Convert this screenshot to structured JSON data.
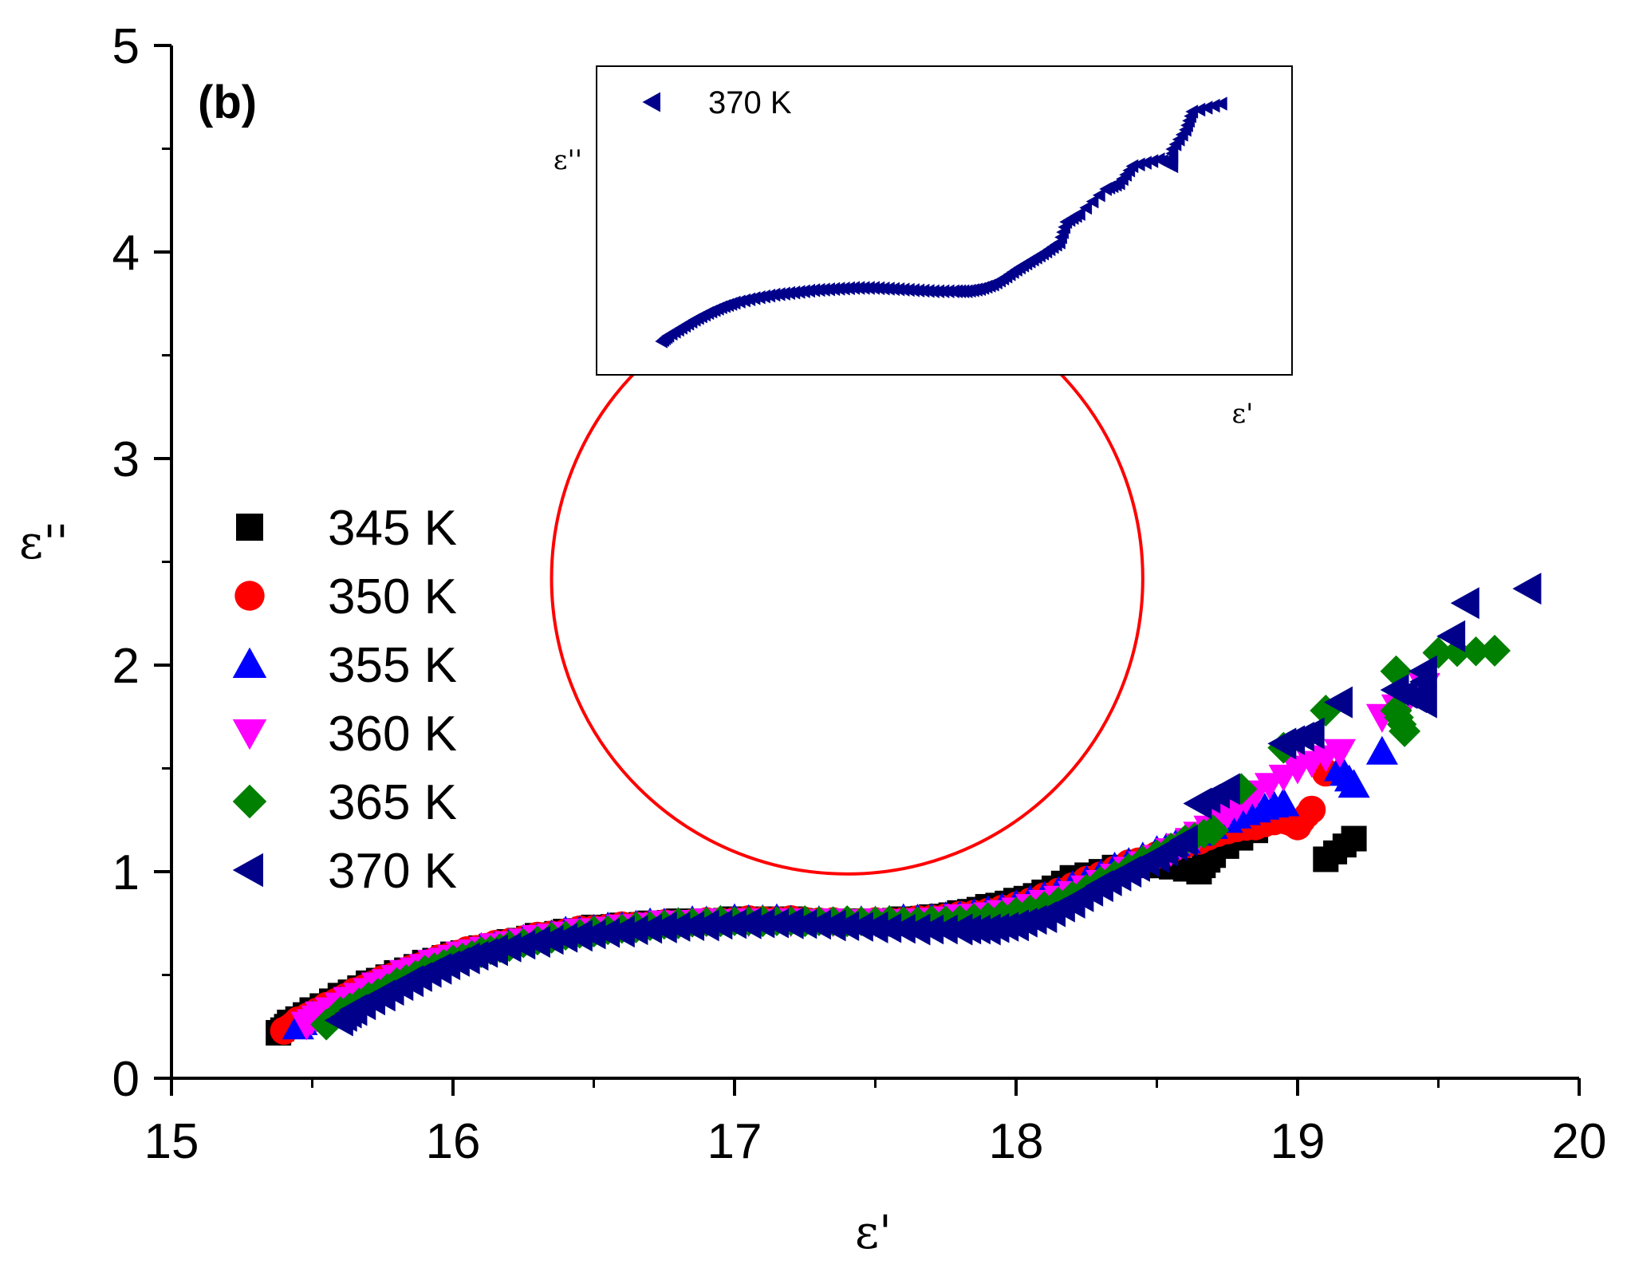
{
  "chart_data": {
    "type": "scatter",
    "panel_label": "(b)",
    "xlabel": "ε'",
    "ylabel": "ε''",
    "xlim": [
      15,
      20
    ],
    "ylim": [
      0,
      5
    ],
    "xticks": [
      15,
      16,
      17,
      18,
      19,
      20
    ],
    "yticks": [
      0,
      1,
      2,
      3,
      4,
      5
    ],
    "legend_position": "left-middle",
    "series": [
      {
        "name": "345 K",
        "color": "#000000",
        "marker": "square",
        "points": [
          [
            15.38,
            0.22
          ],
          [
            15.42,
            0.27
          ],
          [
            15.5,
            0.33
          ],
          [
            15.6,
            0.4
          ],
          [
            15.7,
            0.46
          ],
          [
            15.8,
            0.51
          ],
          [
            15.9,
            0.56
          ],
          [
            16.0,
            0.6
          ],
          [
            16.1,
            0.63
          ],
          [
            16.2,
            0.66
          ],
          [
            16.3,
            0.69
          ],
          [
            16.4,
            0.71
          ],
          [
            16.5,
            0.73
          ],
          [
            16.6,
            0.74
          ],
          [
            16.7,
            0.75
          ],
          [
            16.8,
            0.76
          ],
          [
            16.9,
            0.76
          ],
          [
            17.0,
            0.77
          ],
          [
            17.1,
            0.77
          ],
          [
            17.2,
            0.77
          ],
          [
            17.3,
            0.76
          ],
          [
            17.4,
            0.76
          ],
          [
            17.5,
            0.76
          ],
          [
            17.6,
            0.77
          ],
          [
            17.7,
            0.78
          ],
          [
            17.8,
            0.8
          ],
          [
            17.9,
            0.83
          ],
          [
            18.0,
            0.86
          ],
          [
            18.1,
            0.9
          ],
          [
            18.2,
            0.97
          ],
          [
            18.35,
            1.02
          ],
          [
            18.5,
            1.03
          ],
          [
            18.65,
            1.0
          ],
          [
            18.7,
            1.08
          ],
          [
            18.85,
            1.2
          ],
          [
            19.1,
            1.06
          ],
          [
            19.2,
            1.16
          ]
        ]
      },
      {
        "name": "350 K",
        "color": "#ff0000",
        "marker": "circle",
        "points": [
          [
            15.4,
            0.23
          ],
          [
            15.45,
            0.28
          ],
          [
            15.55,
            0.35
          ],
          [
            15.65,
            0.42
          ],
          [
            15.75,
            0.48
          ],
          [
            15.85,
            0.53
          ],
          [
            15.95,
            0.58
          ],
          [
            16.05,
            0.62
          ],
          [
            16.15,
            0.65
          ],
          [
            16.3,
            0.69
          ],
          [
            16.45,
            0.72
          ],
          [
            16.6,
            0.74
          ],
          [
            16.75,
            0.75
          ],
          [
            16.9,
            0.76
          ],
          [
            17.05,
            0.77
          ],
          [
            17.2,
            0.77
          ],
          [
            17.35,
            0.76
          ],
          [
            17.5,
            0.76
          ],
          [
            17.65,
            0.77
          ],
          [
            17.8,
            0.79
          ],
          [
            17.95,
            0.82
          ],
          [
            18.1,
            0.88
          ],
          [
            18.25,
            0.96
          ],
          [
            18.4,
            1.04
          ],
          [
            18.5,
            1.08
          ],
          [
            18.65,
            1.15
          ],
          [
            18.75,
            1.2
          ],
          [
            18.85,
            1.22
          ],
          [
            18.95,
            1.25
          ],
          [
            19.0,
            1.22
          ],
          [
            19.05,
            1.3
          ],
          [
            19.1,
            1.48
          ]
        ]
      },
      {
        "name": "355 K",
        "color": "#0000ff",
        "marker": "triangle-up",
        "points": [
          [
            15.45,
            0.25
          ],
          [
            15.5,
            0.3
          ],
          [
            15.6,
            0.37
          ],
          [
            15.7,
            0.44
          ],
          [
            15.8,
            0.5
          ],
          [
            15.9,
            0.55
          ],
          [
            16.0,
            0.59
          ],
          [
            16.1,
            0.63
          ],
          [
            16.25,
            0.67
          ],
          [
            16.4,
            0.71
          ],
          [
            16.55,
            0.73
          ],
          [
            16.7,
            0.75
          ],
          [
            16.85,
            0.76
          ],
          [
            17.0,
            0.77
          ],
          [
            17.15,
            0.77
          ],
          [
            17.3,
            0.76
          ],
          [
            17.45,
            0.76
          ],
          [
            17.6,
            0.77
          ],
          [
            17.75,
            0.78
          ],
          [
            17.9,
            0.81
          ],
          [
            18.05,
            0.86
          ],
          [
            18.2,
            0.93
          ],
          [
            18.35,
            1.02
          ],
          [
            18.5,
            1.1
          ],
          [
            18.6,
            1.15
          ],
          [
            18.75,
            1.25
          ],
          [
            18.85,
            1.3
          ],
          [
            18.95,
            1.33
          ],
          [
            19.15,
            1.5
          ],
          [
            19.2,
            1.42
          ],
          [
            19.3,
            1.58
          ]
        ]
      },
      {
        "name": "360 K",
        "color": "#ff00ff",
        "marker": "triangle-down",
        "points": [
          [
            15.48,
            0.26
          ],
          [
            15.53,
            0.31
          ],
          [
            15.63,
            0.38
          ],
          [
            15.73,
            0.45
          ],
          [
            15.83,
            0.51
          ],
          [
            15.93,
            0.56
          ],
          [
            16.03,
            0.6
          ],
          [
            16.15,
            0.64
          ],
          [
            16.3,
            0.68
          ],
          [
            16.45,
            0.71
          ],
          [
            16.6,
            0.73
          ],
          [
            16.75,
            0.75
          ],
          [
            16.9,
            0.76
          ],
          [
            17.05,
            0.76
          ],
          [
            17.2,
            0.76
          ],
          [
            17.35,
            0.76
          ],
          [
            17.5,
            0.76
          ],
          [
            17.65,
            0.76
          ],
          [
            17.8,
            0.78
          ],
          [
            17.95,
            0.8
          ],
          [
            18.1,
            0.85
          ],
          [
            18.25,
            0.92
          ],
          [
            18.4,
            1.01
          ],
          [
            18.55,
            1.1
          ],
          [
            18.65,
            1.18
          ],
          [
            18.75,
            1.28
          ],
          [
            18.85,
            1.38
          ],
          [
            19.0,
            1.5
          ],
          [
            19.15,
            1.58
          ],
          [
            19.3,
            1.75
          ],
          [
            19.45,
            1.9
          ]
        ]
      },
      {
        "name": "365 K",
        "color": "#008000",
        "marker": "diamond",
        "points": [
          [
            15.55,
            0.26
          ],
          [
            15.6,
            0.32
          ],
          [
            15.7,
            0.39
          ],
          [
            15.8,
            0.46
          ],
          [
            15.9,
            0.52
          ],
          [
            16.0,
            0.57
          ],
          [
            16.1,
            0.61
          ],
          [
            16.2,
            0.64
          ],
          [
            16.35,
            0.68
          ],
          [
            16.5,
            0.71
          ],
          [
            16.65,
            0.73
          ],
          [
            16.8,
            0.75
          ],
          [
            16.95,
            0.76
          ],
          [
            17.1,
            0.76
          ],
          [
            17.25,
            0.76
          ],
          [
            17.4,
            0.76
          ],
          [
            17.55,
            0.76
          ],
          [
            17.7,
            0.76
          ],
          [
            17.85,
            0.77
          ],
          [
            18.0,
            0.8
          ],
          [
            18.15,
            0.85
          ],
          [
            18.3,
            0.95
          ],
          [
            18.45,
            1.05
          ],
          [
            18.6,
            1.15
          ],
          [
            18.7,
            1.2
          ],
          [
            18.8,
            1.4
          ],
          [
            18.95,
            1.6
          ],
          [
            19.1,
            1.78
          ],
          [
            19.35,
            1.97
          ],
          [
            19.35,
            1.78
          ],
          [
            19.38,
            1.68
          ],
          [
            19.5,
            2.06
          ],
          [
            19.7,
            2.07
          ]
        ]
      },
      {
        "name": "370 K",
        "color": "#00008b",
        "marker": "triangle-left",
        "points": [
          [
            15.6,
            0.28
          ],
          [
            15.65,
            0.33
          ],
          [
            15.75,
            0.4
          ],
          [
            15.85,
            0.47
          ],
          [
            15.95,
            0.53
          ],
          [
            16.05,
            0.58
          ],
          [
            16.15,
            0.62
          ],
          [
            16.3,
            0.66
          ],
          [
            16.45,
            0.69
          ],
          [
            16.6,
            0.71
          ],
          [
            16.75,
            0.73
          ],
          [
            16.9,
            0.74
          ],
          [
            17.05,
            0.75
          ],
          [
            17.2,
            0.75
          ],
          [
            17.35,
            0.74
          ],
          [
            17.5,
            0.73
          ],
          [
            17.65,
            0.72
          ],
          [
            17.8,
            0.72
          ],
          [
            17.9,
            0.72
          ],
          [
            18.0,
            0.74
          ],
          [
            18.1,
            0.78
          ],
          [
            18.2,
            0.85
          ],
          [
            18.3,
            0.93
          ],
          [
            18.4,
            1.0
          ],
          [
            18.5,
            1.07
          ],
          [
            18.6,
            1.15
          ],
          [
            18.65,
            1.33
          ],
          [
            18.75,
            1.4
          ],
          [
            18.95,
            1.62
          ],
          [
            19.05,
            1.67
          ],
          [
            19.15,
            1.82
          ],
          [
            19.35,
            1.88
          ],
          [
            19.45,
            1.82
          ],
          [
            19.45,
            1.97
          ],
          [
            19.55,
            2.14
          ],
          [
            19.6,
            2.3
          ],
          [
            19.82,
            2.37
          ]
        ]
      }
    ],
    "inset": {
      "legend_label": "370 K",
      "xlabel": "ε'",
      "ylabel": "ε''",
      "series_ref": "370 K"
    },
    "highlight_circle": {
      "cx": 17.4,
      "cy": 2.42,
      "r_x_units": 1.05,
      "color": "#ff0000"
    }
  }
}
